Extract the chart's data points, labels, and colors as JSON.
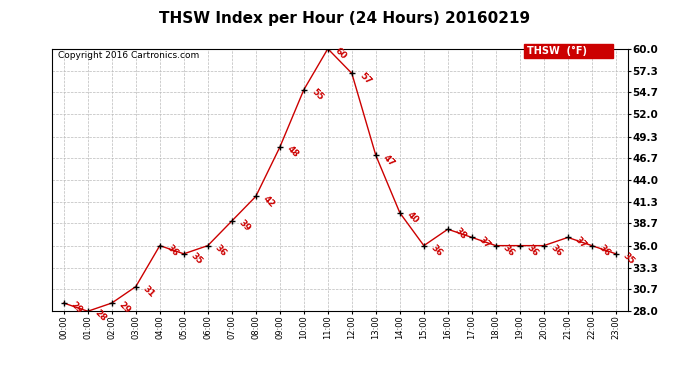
{
  "title": "THSW Index per Hour (24 Hours) 20160219",
  "copyright": "Copyright 2016 Cartronics.com",
  "legend_label": "THSW  (°F)",
  "hours": [
    0,
    1,
    2,
    3,
    4,
    5,
    6,
    7,
    8,
    9,
    10,
    11,
    12,
    13,
    14,
    15,
    16,
    17,
    18,
    19,
    20,
    21,
    22,
    23
  ],
  "values": [
    29,
    28,
    29,
    31,
    36,
    35,
    36,
    39,
    42,
    48,
    55,
    60,
    57,
    47,
    40,
    36,
    38,
    37,
    36,
    36,
    36,
    37,
    36,
    35
  ],
  "ylim_min": 28.0,
  "ylim_max": 60.0,
  "yticks": [
    28.0,
    30.7,
    33.3,
    36.0,
    38.7,
    41.3,
    44.0,
    46.7,
    49.3,
    52.0,
    54.7,
    57.3,
    60.0
  ],
  "line_color": "#cc0000",
  "marker_color": "#000000",
  "bg_color": "#ffffff",
  "grid_color": "#bbbbbb",
  "title_fontsize": 11,
  "annotation_fontsize": 6.5,
  "copyright_fontsize": 6.5,
  "legend_bg": "#cc0000",
  "legend_text_color": "#ffffff",
  "legend_fontsize": 7
}
